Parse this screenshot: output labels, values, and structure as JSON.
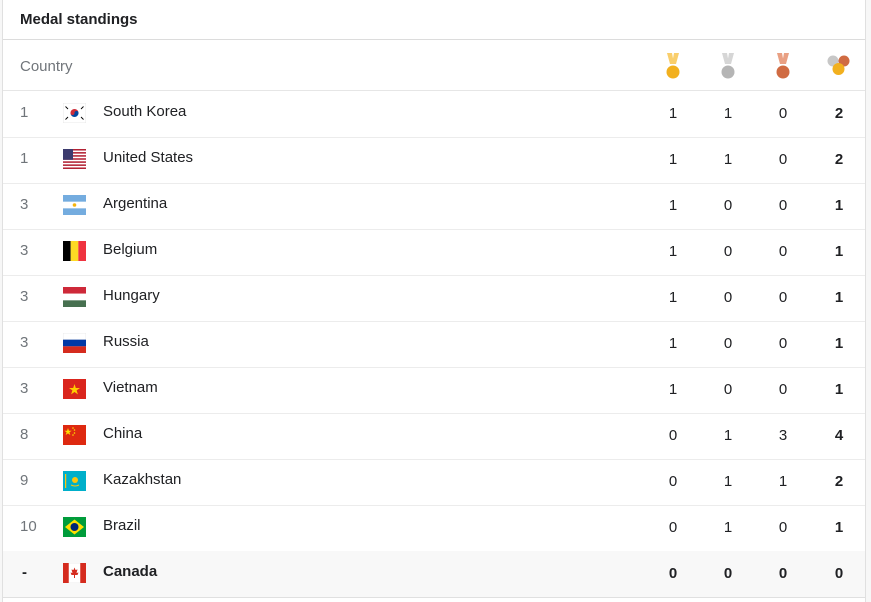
{
  "title": "Medal standings",
  "header": {
    "country_label": "Country",
    "icons": [
      "gold-medal-icon",
      "silver-medal-icon",
      "bronze-medal-icon",
      "total-medals-icon"
    ]
  },
  "colors": {
    "gold": "#f2b01e",
    "silver": "#b5b5b5",
    "bronze": "#d06b42",
    "ribbon_gold": "#f9ce6b",
    "ribbon_silver": "#d6d6d6",
    "ribbon_bronze": "#e9a083"
  },
  "rows": [
    {
      "rank": "1",
      "country": "South Korea",
      "flag": "south-korea-flag-icon",
      "gold": "1",
      "silver": "1",
      "bronze": "0",
      "total": "2"
    },
    {
      "rank": "1",
      "country": "United States",
      "flag": "united-states-flag-icon",
      "gold": "1",
      "silver": "1",
      "bronze": "0",
      "total": "2"
    },
    {
      "rank": "3",
      "country": "Argentina",
      "flag": "argentina-flag-icon",
      "gold": "1",
      "silver": "0",
      "bronze": "0",
      "total": "1"
    },
    {
      "rank": "3",
      "country": "Belgium",
      "flag": "belgium-flag-icon",
      "gold": "1",
      "silver": "0",
      "bronze": "0",
      "total": "1"
    },
    {
      "rank": "3",
      "country": "Hungary",
      "flag": "hungary-flag-icon",
      "gold": "1",
      "silver": "0",
      "bronze": "0",
      "total": "1"
    },
    {
      "rank": "3",
      "country": "Russia",
      "flag": "russia-flag-icon",
      "gold": "1",
      "silver": "0",
      "bronze": "0",
      "total": "1"
    },
    {
      "rank": "3",
      "country": "Vietnam",
      "flag": "vietnam-flag-icon",
      "gold": "1",
      "silver": "0",
      "bronze": "0",
      "total": "1"
    },
    {
      "rank": "8",
      "country": "China",
      "flag": "china-flag-icon",
      "gold": "0",
      "silver": "1",
      "bronze": "3",
      "total": "4"
    },
    {
      "rank": "9",
      "country": "Kazakhstan",
      "flag": "kazakhstan-flag-icon",
      "gold": "0",
      "silver": "1",
      "bronze": "1",
      "total": "2"
    },
    {
      "rank": "10",
      "country": "Brazil",
      "flag": "brazil-flag-icon",
      "gold": "0",
      "silver": "1",
      "bronze": "0",
      "total": "1"
    },
    {
      "rank": "-",
      "country": "Canada",
      "flag": "canada-flag-icon",
      "gold": "0",
      "silver": "0",
      "bronze": "0",
      "total": "0"
    }
  ]
}
